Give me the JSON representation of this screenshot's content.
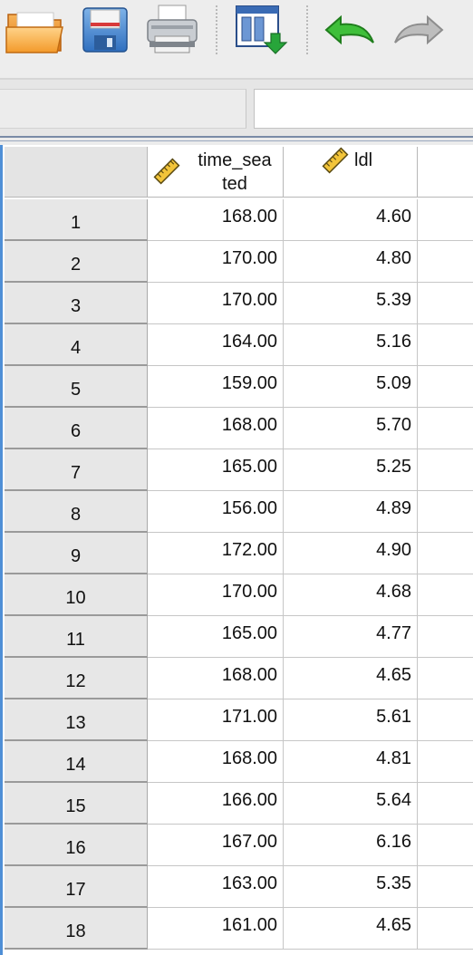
{
  "toolbar": {
    "buttons": [
      {
        "name": "open-button",
        "icon": "folder-open-icon"
      },
      {
        "name": "save-button",
        "icon": "floppy-disk-icon"
      },
      {
        "name": "print-button",
        "icon": "printer-icon"
      },
      {
        "name": "recall-dialog-button",
        "icon": "recall-dialog-icon"
      },
      {
        "name": "undo-button",
        "icon": "undo-arrow-icon"
      },
      {
        "name": "redo-button",
        "icon": "redo-arrow-icon",
        "disabled": true
      }
    ]
  },
  "cell_editor": {
    "reference": "",
    "value": ""
  },
  "grid": {
    "columns": [
      {
        "label_line1": "time_sea",
        "label_line2": "ted",
        "type_icon": "ruler-scale-icon"
      },
      {
        "label_line1": "ldl",
        "label_line2": "",
        "type_icon": "ruler-scale-icon"
      },
      {
        "label_line1": "",
        "label_line2": "",
        "type_icon": ""
      }
    ],
    "rows": [
      {
        "num": "1",
        "time_seated": "168.00",
        "ldl": "4.60"
      },
      {
        "num": "2",
        "time_seated": "170.00",
        "ldl": "4.80"
      },
      {
        "num": "3",
        "time_seated": "170.00",
        "ldl": "5.39"
      },
      {
        "num": "4",
        "time_seated": "164.00",
        "ldl": "5.16"
      },
      {
        "num": "5",
        "time_seated": "159.00",
        "ldl": "5.09"
      },
      {
        "num": "6",
        "time_seated": "168.00",
        "ldl": "5.70"
      },
      {
        "num": "7",
        "time_seated": "165.00",
        "ldl": "5.25"
      },
      {
        "num": "8",
        "time_seated": "156.00",
        "ldl": "4.89"
      },
      {
        "num": "9",
        "time_seated": "172.00",
        "ldl": "4.90"
      },
      {
        "num": "10",
        "time_seated": "170.00",
        "ldl": "4.68"
      },
      {
        "num": "11",
        "time_seated": "165.00",
        "ldl": "4.77"
      },
      {
        "num": "12",
        "time_seated": "168.00",
        "ldl": "4.65"
      },
      {
        "num": "13",
        "time_seated": "171.00",
        "ldl": "5.61"
      },
      {
        "num": "14",
        "time_seated": "168.00",
        "ldl": "4.81"
      },
      {
        "num": "15",
        "time_seated": "166.00",
        "ldl": "5.64"
      },
      {
        "num": "16",
        "time_seated": "167.00",
        "ldl": "6.16"
      },
      {
        "num": "17",
        "time_seated": "163.00",
        "ldl": "5.35"
      },
      {
        "num": "18",
        "time_seated": "161.00",
        "ldl": "4.65"
      }
    ]
  }
}
